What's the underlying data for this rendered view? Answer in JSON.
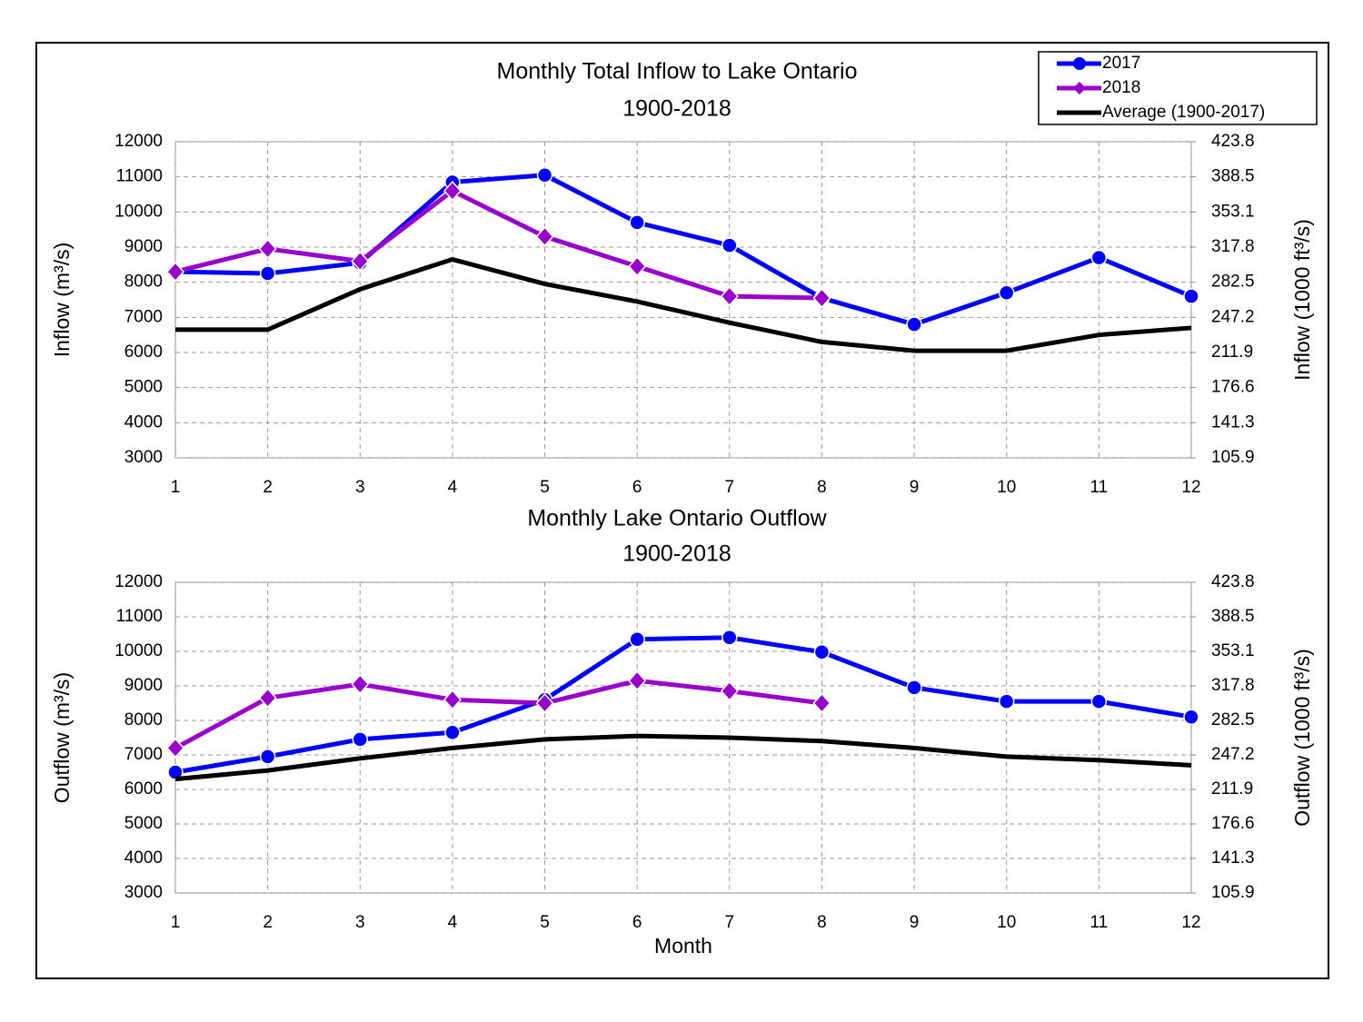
{
  "chart_data": [
    {
      "type": "line",
      "title": "Monthly Total Inflow to Lake Ontario",
      "subtitle": "1900-2018",
      "ylabel": "Inflow (m³/s)",
      "y2label": "Inflow (1000 ft³/s)",
      "x": [
        1,
        2,
        3,
        4,
        5,
        6,
        7,
        8,
        9,
        10,
        11,
        12
      ],
      "xlim": [
        1,
        12
      ],
      "xticks": [
        1,
        2,
        3,
        4,
        5,
        6,
        7,
        8,
        9,
        10,
        11,
        12
      ],
      "ylim": [
        3000,
        12000
      ],
      "yticks": [
        3000,
        4000,
        5000,
        6000,
        7000,
        8000,
        9000,
        10000,
        11000,
        12000
      ],
      "y2lim": [
        105.9,
        423.8
      ],
      "y2ticks": [
        105.9,
        141.3,
        176.6,
        211.9,
        247.2,
        282.5,
        317.8,
        353.1,
        388.5,
        423.8
      ],
      "grid": true,
      "legend": "top right",
      "series": [
        {
          "name": "2017",
          "color": "#0000ff",
          "marker": "circle",
          "values": [
            8300,
            8250,
            8550,
            10850,
            11050,
            9700,
            9050,
            7550,
            6800,
            7700,
            8700,
            7600
          ]
        },
        {
          "name": "2018",
          "color": "#9900cc",
          "marker": "diamond",
          "values": [
            8300,
            8950,
            8600,
            10600,
            9300,
            8450,
            7600,
            7550,
            null,
            null,
            null,
            null
          ]
        },
        {
          "name": "Average (1900-2017)",
          "color": "#000000",
          "marker": "none",
          "values": [
            6650,
            6650,
            7800,
            8650,
            7950,
            7450,
            6850,
            6300,
            6050,
            6050,
            6500,
            6700
          ]
        }
      ]
    },
    {
      "type": "line",
      "title": "Monthly Lake Ontario Outflow",
      "subtitle": "1900-2018",
      "ylabel": "Outflow (m³/s)",
      "y2label": "Outflow (1000 ft³/s)",
      "xlabel": "Month",
      "x": [
        1,
        2,
        3,
        4,
        5,
        6,
        7,
        8,
        9,
        10,
        11,
        12
      ],
      "xlim": [
        1,
        12
      ],
      "xticks": [
        1,
        2,
        3,
        4,
        5,
        6,
        7,
        8,
        9,
        10,
        11,
        12
      ],
      "ylim": [
        3000,
        12000
      ],
      "yticks": [
        3000,
        4000,
        5000,
        6000,
        7000,
        8000,
        9000,
        10000,
        11000,
        12000
      ],
      "y2lim": [
        105.9,
        423.8
      ],
      "y2ticks": [
        105.9,
        141.3,
        176.6,
        211.9,
        247.2,
        282.5,
        317.8,
        353.1,
        388.5,
        423.8
      ],
      "grid": true,
      "series": [
        {
          "color": "#0000ff",
          "marker": "circle",
          "values": [
            6500,
            6950,
            7450,
            7650,
            8600,
            10350,
            10400,
            9980,
            8950,
            8550,
            8550,
            8100
          ]
        },
        {
          "color": "#9900cc",
          "marker": "diamond",
          "values": [
            7200,
            8650,
            9050,
            8600,
            8500,
            9150,
            8850,
            8500,
            null,
            null,
            null,
            null
          ]
        },
        {
          "color": "#000000",
          "marker": "none",
          "values": [
            6300,
            6550,
            6900,
            7200,
            7450,
            7550,
            7500,
            7400,
            7200,
            6950,
            6850,
            6700
          ]
        }
      ]
    }
  ]
}
